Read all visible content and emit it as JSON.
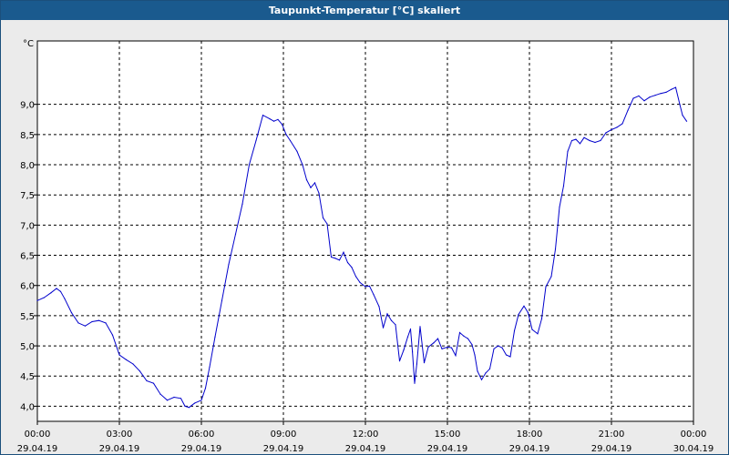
{
  "title": "Taupunkt-Temperatur [°C] skaliert",
  "chart_data": {
    "type": "line",
    "title": "Taupunkt-Temperatur [°C] skaliert",
    "ylabel": "°C",
    "xlabel": "",
    "ylim": [
      3.75,
      10.05
    ],
    "xlim": [
      0,
      24
    ],
    "grid": true,
    "legend": "none",
    "line_color": "#0000cc",
    "grid_color": "#000000",
    "x_ticks": [
      {
        "x": 0,
        "time": "00:00",
        "date": "29.04.19"
      },
      {
        "x": 3,
        "time": "03:00",
        "date": "29.04.19"
      },
      {
        "x": 6,
        "time": "06:00",
        "date": "29.04.19"
      },
      {
        "x": 9,
        "time": "09:00",
        "date": "29.04.19"
      },
      {
        "x": 12,
        "time": "12:00",
        "date": "29.04.19"
      },
      {
        "x": 15,
        "time": "15:00",
        "date": "29.04.19"
      },
      {
        "x": 18,
        "time": "18:00",
        "date": "29.04.19"
      },
      {
        "x": 21,
        "time": "21:00",
        "date": "29.04.19"
      },
      {
        "x": 24,
        "time": "00:00",
        "date": "30.04.19"
      }
    ],
    "y_ticks": [
      {
        "y": 4.0,
        "label": "4,0"
      },
      {
        "y": 4.5,
        "label": "4,5"
      },
      {
        "y": 5.0,
        "label": "5,0"
      },
      {
        "y": 5.5,
        "label": "5,5"
      },
      {
        "y": 6.0,
        "label": "6,0"
      },
      {
        "y": 6.5,
        "label": "6,5"
      },
      {
        "y": 7.0,
        "label": "7,0"
      },
      {
        "y": 7.5,
        "label": "7,5"
      },
      {
        "y": 8.0,
        "label": "8,0"
      },
      {
        "y": 8.5,
        "label": "8,5"
      },
      {
        "y": 9.0,
        "label": "9,0"
      }
    ],
    "series": [
      {
        "points": [
          [
            0.0,
            5.75
          ],
          [
            0.25,
            5.8
          ],
          [
            0.5,
            5.88
          ],
          [
            0.7,
            5.95
          ],
          [
            0.85,
            5.9
          ],
          [
            1.0,
            5.78
          ],
          [
            1.25,
            5.55
          ],
          [
            1.5,
            5.38
          ],
          [
            1.75,
            5.33
          ],
          [
            2.0,
            5.4
          ],
          [
            2.25,
            5.42
          ],
          [
            2.5,
            5.38
          ],
          [
            2.75,
            5.18
          ],
          [
            3.0,
            4.85
          ],
          [
            3.25,
            4.77
          ],
          [
            3.5,
            4.7
          ],
          [
            3.75,
            4.58
          ],
          [
            4.0,
            4.42
          ],
          [
            4.25,
            4.38
          ],
          [
            4.5,
            4.2
          ],
          [
            4.75,
            4.1
          ],
          [
            5.0,
            4.15
          ],
          [
            5.25,
            4.13
          ],
          [
            5.4,
            4.0
          ],
          [
            5.55,
            3.98
          ],
          [
            5.75,
            4.05
          ],
          [
            6.0,
            4.1
          ],
          [
            6.15,
            4.3
          ],
          [
            6.3,
            4.65
          ],
          [
            6.5,
            5.15
          ],
          [
            6.75,
            5.75
          ],
          [
            7.0,
            6.35
          ],
          [
            7.25,
            6.85
          ],
          [
            7.5,
            7.35
          ],
          [
            7.75,
            8.0
          ],
          [
            8.0,
            8.4
          ],
          [
            8.25,
            8.82
          ],
          [
            8.5,
            8.76
          ],
          [
            8.65,
            8.72
          ],
          [
            8.8,
            8.75
          ],
          [
            8.95,
            8.67
          ],
          [
            9.1,
            8.5
          ],
          [
            9.25,
            8.4
          ],
          [
            9.5,
            8.22
          ],
          [
            9.7,
            8.0
          ],
          [
            9.85,
            7.75
          ],
          [
            10.0,
            7.62
          ],
          [
            10.15,
            7.7
          ],
          [
            10.3,
            7.53
          ],
          [
            10.45,
            7.12
          ],
          [
            10.6,
            7.02
          ],
          [
            10.75,
            6.47
          ],
          [
            10.9,
            6.45
          ],
          [
            11.05,
            6.42
          ],
          [
            11.2,
            6.55
          ],
          [
            11.35,
            6.38
          ],
          [
            11.5,
            6.3
          ],
          [
            11.65,
            6.15
          ],
          [
            11.8,
            6.05
          ],
          [
            12.0,
            5.98
          ],
          [
            12.15,
            5.99
          ],
          [
            12.3,
            5.85
          ],
          [
            12.5,
            5.65
          ],
          [
            12.65,
            5.3
          ],
          [
            12.8,
            5.53
          ],
          [
            12.95,
            5.42
          ],
          [
            13.1,
            5.35
          ],
          [
            13.25,
            4.75
          ],
          [
            13.4,
            4.93
          ],
          [
            13.55,
            5.15
          ],
          [
            13.65,
            5.28
          ],
          [
            13.72,
            4.9
          ],
          [
            13.8,
            4.38
          ],
          [
            13.88,
            4.7
          ],
          [
            14.0,
            5.32
          ],
          [
            14.15,
            4.72
          ],
          [
            14.3,
            4.98
          ],
          [
            14.5,
            5.05
          ],
          [
            14.65,
            5.12
          ],
          [
            14.8,
            4.95
          ],
          [
            15.0,
            4.98
          ],
          [
            15.15,
            4.97
          ],
          [
            15.3,
            4.84
          ],
          [
            15.45,
            5.22
          ],
          [
            15.6,
            5.16
          ],
          [
            15.75,
            5.12
          ],
          [
            15.9,
            5.02
          ],
          [
            16.0,
            4.85
          ],
          [
            16.1,
            4.58
          ],
          [
            16.25,
            4.44
          ],
          [
            16.4,
            4.55
          ],
          [
            16.55,
            4.62
          ],
          [
            16.7,
            4.95
          ],
          [
            16.85,
            5.0
          ],
          [
            17.0,
            4.97
          ],
          [
            17.15,
            4.85
          ],
          [
            17.3,
            4.82
          ],
          [
            17.45,
            5.25
          ],
          [
            17.6,
            5.52
          ],
          [
            17.8,
            5.66
          ],
          [
            17.95,
            5.55
          ],
          [
            18.1,
            5.27
          ],
          [
            18.3,
            5.2
          ],
          [
            18.45,
            5.45
          ],
          [
            18.6,
            5.98
          ],
          [
            18.8,
            6.15
          ],
          [
            18.95,
            6.6
          ],
          [
            19.1,
            7.3
          ],
          [
            19.25,
            7.65
          ],
          [
            19.4,
            8.22
          ],
          [
            19.55,
            8.4
          ],
          [
            19.7,
            8.42
          ],
          [
            19.85,
            8.35
          ],
          [
            20.0,
            8.45
          ],
          [
            20.2,
            8.4
          ],
          [
            20.4,
            8.37
          ],
          [
            20.6,
            8.4
          ],
          [
            20.8,
            8.53
          ],
          [
            21.0,
            8.58
          ],
          [
            21.2,
            8.62
          ],
          [
            21.4,
            8.68
          ],
          [
            21.6,
            8.9
          ],
          [
            21.8,
            9.1
          ],
          [
            22.0,
            9.14
          ],
          [
            22.2,
            9.06
          ],
          [
            22.4,
            9.12
          ],
          [
            22.6,
            9.15
          ],
          [
            22.8,
            9.18
          ],
          [
            23.0,
            9.2
          ],
          [
            23.2,
            9.25
          ],
          [
            23.35,
            9.28
          ],
          [
            23.5,
            9.0
          ],
          [
            23.6,
            8.82
          ],
          [
            23.75,
            8.72
          ]
        ]
      }
    ]
  }
}
